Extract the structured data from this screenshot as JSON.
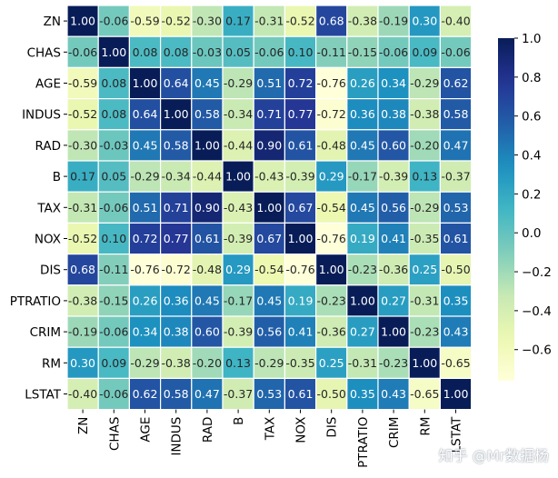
{
  "chart_data": {
    "type": "heatmap",
    "title": "",
    "labels": [
      "ZN",
      "CHAS",
      "AGE",
      "INDUS",
      "RAD",
      "B",
      "TAX",
      "NOX",
      "DIS",
      "PTRATIO",
      "CRIM",
      "RM",
      "LSTAT"
    ],
    "values": [
      [
        1.0,
        -0.06,
        -0.59,
        -0.52,
        -0.3,
        0.17,
        -0.31,
        -0.52,
        0.68,
        -0.38,
        -0.19,
        0.3,
        -0.4
      ],
      [
        -0.06,
        1.0,
        0.08,
        0.08,
        -0.03,
        0.05,
        -0.06,
        0.1,
        -0.11,
        -0.15,
        -0.06,
        0.09,
        -0.06
      ],
      [
        -0.59,
        0.08,
        1.0,
        0.64,
        0.45,
        -0.29,
        0.51,
        0.72,
        -0.76,
        0.26,
        0.34,
        -0.29,
        0.62
      ],
      [
        -0.52,
        0.08,
        0.64,
        1.0,
        0.58,
        -0.34,
        0.71,
        0.77,
        -0.72,
        0.36,
        0.38,
        -0.38,
        0.58
      ],
      [
        -0.3,
        -0.03,
        0.45,
        0.58,
        1.0,
        -0.44,
        0.9,
        0.61,
        -0.48,
        0.45,
        0.6,
        -0.2,
        0.47
      ],
      [
        0.17,
        0.05,
        -0.29,
        -0.34,
        -0.44,
        1.0,
        -0.43,
        -0.39,
        0.29,
        -0.17,
        -0.39,
        0.13,
        -0.37
      ],
      [
        -0.31,
        -0.06,
        0.51,
        0.71,
        0.9,
        -0.43,
        1.0,
        0.67,
        -0.54,
        0.45,
        0.56,
        -0.29,
        0.53
      ],
      [
        -0.52,
        0.1,
        0.72,
        0.77,
        0.61,
        -0.39,
        0.67,
        1.0,
        -0.76,
        0.19,
        0.41,
        -0.35,
        0.61
      ],
      [
        0.68,
        -0.11,
        -0.76,
        -0.72,
        -0.48,
        0.29,
        -0.54,
        -0.76,
        1.0,
        -0.23,
        -0.36,
        0.25,
        -0.5
      ],
      [
        -0.38,
        -0.15,
        0.26,
        0.36,
        0.45,
        -0.17,
        0.45,
        0.19,
        -0.23,
        1.0,
        0.27,
        -0.31,
        0.35
      ],
      [
        -0.19,
        -0.06,
        0.34,
        0.38,
        0.6,
        -0.39,
        0.56,
        0.41,
        -0.36,
        0.27,
        1.0,
        -0.23,
        0.43
      ],
      [
        0.3,
        0.09,
        -0.29,
        -0.38,
        -0.2,
        0.13,
        -0.29,
        -0.35,
        0.25,
        -0.31,
        -0.23,
        1.0,
        -0.65
      ],
      [
        -0.4,
        -0.06,
        0.62,
        0.58,
        0.47,
        -0.37,
        0.53,
        0.61,
        -0.5,
        0.35,
        0.43,
        -0.65,
        1.0
      ]
    ],
    "colormap": "YlGnBu",
    "vmin": -0.76,
    "vmax": 1.0,
    "colorbar_ticks": [
      1.0,
      0.8,
      0.6,
      0.4,
      0.2,
      0.0,
      -0.2,
      -0.4,
      -0.6
    ],
    "annotations": true
  },
  "watermark": "知乎 @Mr数据杨"
}
